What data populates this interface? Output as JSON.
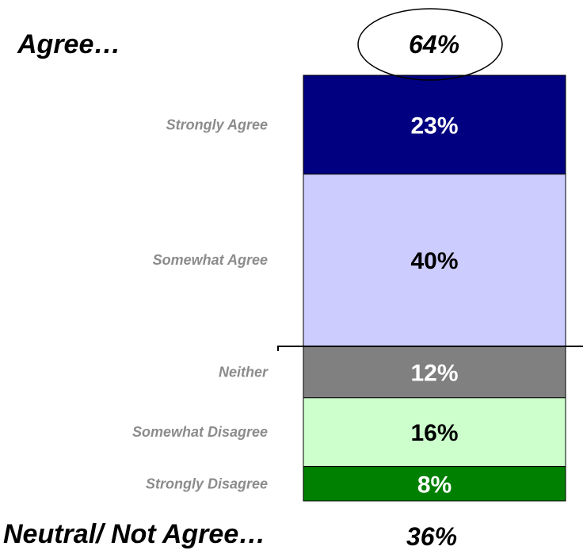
{
  "chart_data": {
    "type": "bar",
    "stacked": true,
    "categories": [
      "Strongly Agree",
      "Somewhat Agree",
      "Neither",
      "Somewhat Disagree",
      "Strongly Disagree"
    ],
    "values": [
      23,
      40,
      12,
      16,
      8
    ],
    "value_labels": [
      "23%",
      "40%",
      "12%",
      "16%",
      "8%"
    ],
    "colors": [
      "#000080",
      "#ccccff",
      "#808080",
      "#ccffcc",
      "#008000"
    ],
    "value_label_colors": [
      "#ffffff",
      "#000000",
      "#ffffff",
      "#000000",
      "#ffffff"
    ],
    "groups": [
      {
        "label": "Agree…",
        "total": "64%"
      },
      {
        "label": "Neutral/ Not Agree…",
        "total": "36%"
      }
    ]
  }
}
